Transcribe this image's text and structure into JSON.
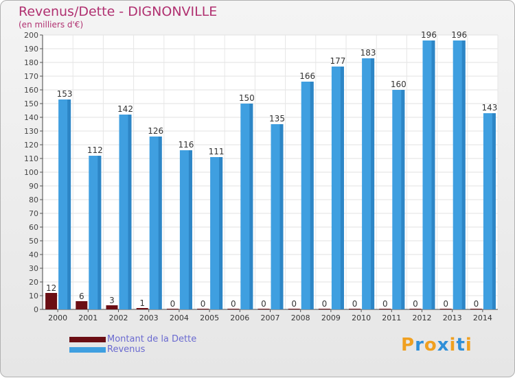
{
  "title": "Revenus/Dette - DIGNONVILLE",
  "subtitle": "(en milliers d'€)",
  "colors": {
    "dette": "#6b0e14",
    "revenus": "#3f9fe0",
    "title": "#b03070"
  },
  "legend": [
    {
      "label": "Montant de la Dette",
      "color": "#6b0e14"
    },
    {
      "label": "Revenus",
      "color": "#3f9fe0"
    }
  ],
  "logo": {
    "text": "Proxiti",
    "letters": [
      "P",
      "r",
      "o",
      "x",
      "i",
      "t",
      "i"
    ],
    "colors": [
      "#f0a020",
      "#2f8fd8",
      "#f0a020",
      "#2f8fd8",
      "#f0a020",
      "#2f8fd8",
      "#f0a020"
    ]
  },
  "chart_data": {
    "type": "bar",
    "categories": [
      "2000",
      "2001",
      "2002",
      "2003",
      "2004",
      "2005",
      "2006",
      "2007",
      "2008",
      "2009",
      "2010",
      "2011",
      "2012",
      "2013",
      "2014"
    ],
    "series": [
      {
        "name": "Montant de la Dette",
        "values": [
          12,
          6,
          3,
          1,
          0,
          0,
          0,
          0,
          0,
          0,
          0,
          0,
          0,
          0,
          0
        ]
      },
      {
        "name": "Revenus",
        "values": [
          153,
          112,
          142,
          126,
          116,
          111,
          150,
          135,
          166,
          177,
          183,
          160,
          196,
          196,
          143
        ]
      }
    ],
    "yticks": [
      0,
      10,
      20,
      30,
      40,
      50,
      60,
      70,
      80,
      90,
      100,
      110,
      120,
      130,
      140,
      150,
      160,
      170,
      180,
      190,
      200
    ],
    "ylim": [
      0,
      200
    ],
    "grid": true,
    "legend_position": "bottom-left"
  }
}
